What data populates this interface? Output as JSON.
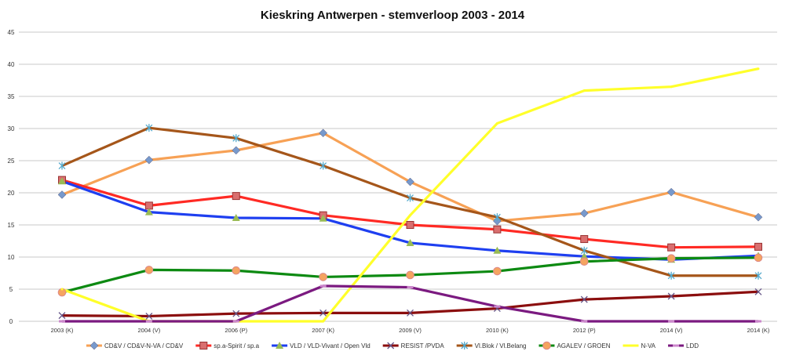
{
  "chart_data": {
    "type": "line",
    "title": "Kieskring Antwerpen - stemverloop 2003 - 2014",
    "xlabel": "",
    "ylabel": "",
    "ylim": [
      0,
      45
    ],
    "yticks": [
      0,
      5,
      10,
      15,
      20,
      25,
      30,
      35,
      40,
      45
    ],
    "grid": true,
    "legend_position": "bottom",
    "categories": [
      "2003 (K)",
      "2004 (V)",
      "2006 (P)",
      "2007 (K)",
      "2009 (V)",
      "2010 (K)",
      "2012 (P)",
      "2014 (V)",
      "2014 (K)"
    ],
    "series": [
      {
        "name": "CD&V / CD&V-N-VA / CD&V",
        "color": "#f7a155",
        "marker": "diamond",
        "marker_color": "#7799cc",
        "values": [
          19.7,
          25.1,
          26.6,
          29.3,
          21.7,
          15.6,
          16.8,
          20.1,
          16.2
        ]
      },
      {
        "name": "sp.a-Spirit / sp.a",
        "color": "#ff2a24",
        "marker": "square",
        "marker_color": "#d96f6f",
        "values": [
          22.0,
          18.0,
          19.5,
          16.5,
          15.0,
          14.3,
          12.8,
          11.5,
          11.6
        ]
      },
      {
        "name": "VLD / VLD-Vivant / Open Vld",
        "color": "#1e3ff0",
        "marker": "triangle",
        "marker_color": "#99bb55",
        "values": [
          21.8,
          17.0,
          16.1,
          16.0,
          12.2,
          11.0,
          10.1,
          9.6,
          10.2
        ]
      },
      {
        "name": "RESIST /PVDA",
        "color": "#8b0e0e",
        "marker": "x",
        "marker_color": "#665588",
        "values": [
          0.9,
          0.8,
          1.2,
          1.3,
          1.3,
          2.0,
          3.4,
          3.9,
          4.6
        ]
      },
      {
        "name": "Vl.Blok / Vl.Belang",
        "color": "#a5561a",
        "marker": "star",
        "marker_color": "#55aacc",
        "values": [
          24.2,
          30.1,
          28.5,
          24.2,
          19.2,
          16.2,
          11.0,
          7.1,
          7.1
        ]
      },
      {
        "name": "AGALEV / GROEN",
        "color": "#0d8a12",
        "marker": "circle",
        "marker_color": "#f5a460",
        "values": [
          4.5,
          8.0,
          7.9,
          6.9,
          7.2,
          7.8,
          9.3,
          9.8,
          9.9
        ]
      },
      {
        "name": "N-VA",
        "color": "#ffff2a",
        "marker": "none",
        "marker_color": "#ffff2a",
        "values": [
          5.0,
          0,
          0,
          0,
          16.5,
          30.8,
          35.9,
          36.5,
          39.3
        ]
      },
      {
        "name": "LDD",
        "color": "#7b1a80",
        "marker": "dash",
        "marker_color": "#cc88cc",
        "values": [
          0,
          0,
          0,
          5.5,
          5.3,
          2.3,
          0,
          0,
          0
        ]
      }
    ]
  }
}
